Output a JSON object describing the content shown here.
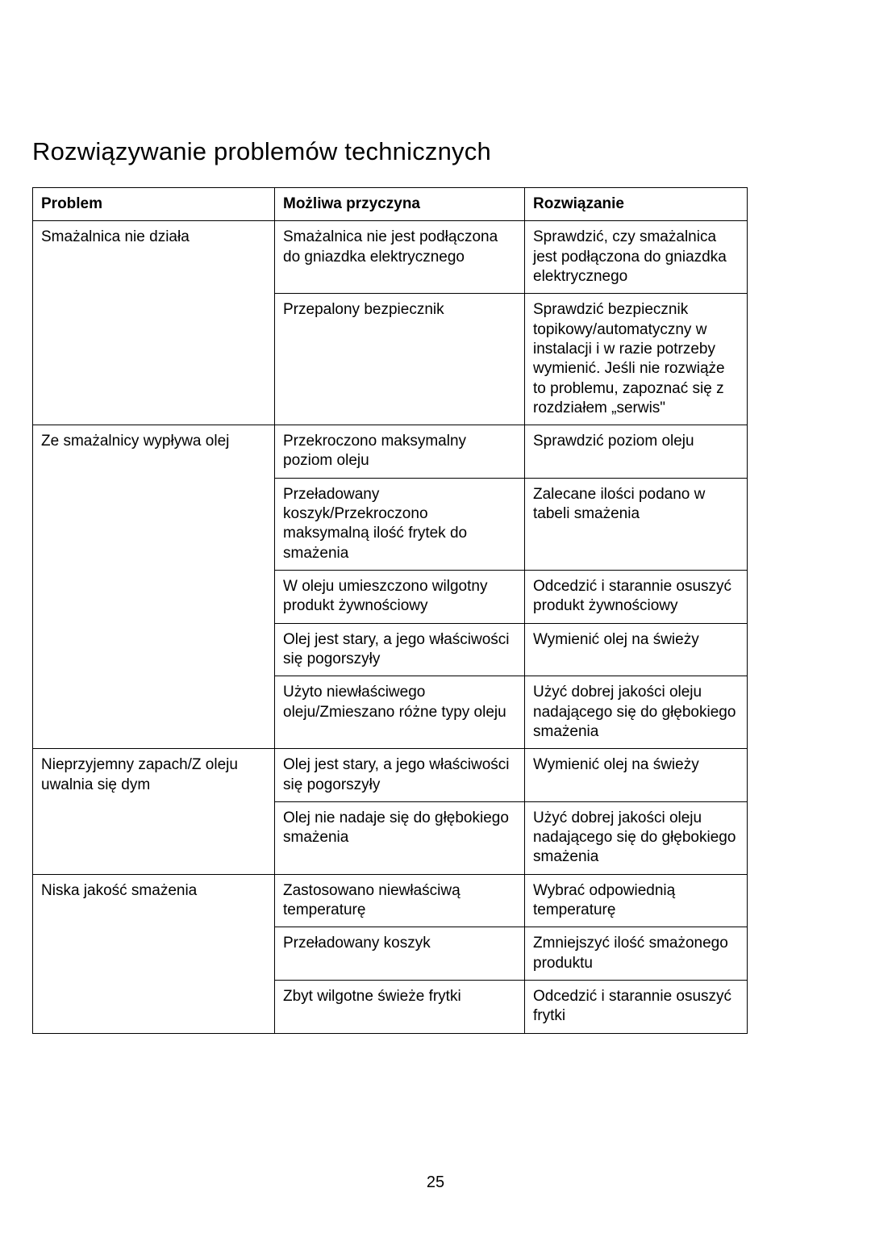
{
  "title": "Rozwiązywanie problemów technicznych",
  "page_number": "25",
  "table": {
    "headers": {
      "problem": "Problem",
      "cause": "Możliwa przyczyna",
      "solution": "Rozwiązanie"
    },
    "groups": [
      {
        "problem": "Smażalnica nie działa",
        "rows": [
          {
            "cause": "Smażalnica nie jest podłączona do gniazdka elektrycznego",
            "solution": "Sprawdzić, czy smażalnica jest podłączona do gniazdka elektrycznego"
          },
          {
            "cause": "Przepalony bezpiecznik",
            "solution": "Sprawdzić bezpiecznik topikowy/automatyczny w instalacji i w razie potrzeby wymienić. Jeśli nie rozwiąże to problemu, zapoznać się z rozdziałem „serwis\""
          }
        ]
      },
      {
        "problem": "Ze smażalnicy wypływa olej",
        "rows": [
          {
            "cause": "Przekroczono maksymalny poziom oleju",
            "solution": "Sprawdzić poziom oleju"
          },
          {
            "cause": "Przeładowany koszyk/Przekroczono maksymalną ilość frytek do smażenia",
            "solution": "Zalecane ilości podano w tabeli smażenia"
          },
          {
            "cause": "W oleju umieszczono wilgotny produkt żywnościowy",
            "solution": "Odcedzić i starannie osuszyć produkt żywnościowy"
          },
          {
            "cause": "Olej jest stary, a jego właściwości się pogorszyły",
            "solution": "Wymienić olej na świeży"
          },
          {
            "cause": "Użyto niewłaściwego oleju/Zmieszano różne typy oleju",
            "solution": "Użyć dobrej jakości oleju nadającego się do głębokiego smażenia"
          }
        ]
      },
      {
        "problem": "Nieprzyjemny zapach/Z oleju uwalnia się dym",
        "rows": [
          {
            "cause": "Olej jest stary, a jego właściwości się pogorszyły",
            "solution": "Wymienić olej na świeży"
          },
          {
            "cause": "Olej nie nadaje się do głębokiego smażenia",
            "solution": "Użyć dobrej jakości oleju nadającego się do głębokiego smażenia"
          }
        ]
      },
      {
        "problem": "Niska jakość smażenia",
        "rows": [
          {
            "cause": "Zastosowano niewłaściwą temperaturę",
            "solution": "Wybrać odpowiednią temperaturę"
          },
          {
            "cause": "Przeładowany koszyk",
            "solution": "Zmniejszyć ilość smażonego produktu"
          },
          {
            "cause": "Zbyt wilgotne świeże frytki",
            "solution": "Odcedzić i starannie osuszyć frytki"
          }
        ]
      }
    ]
  }
}
